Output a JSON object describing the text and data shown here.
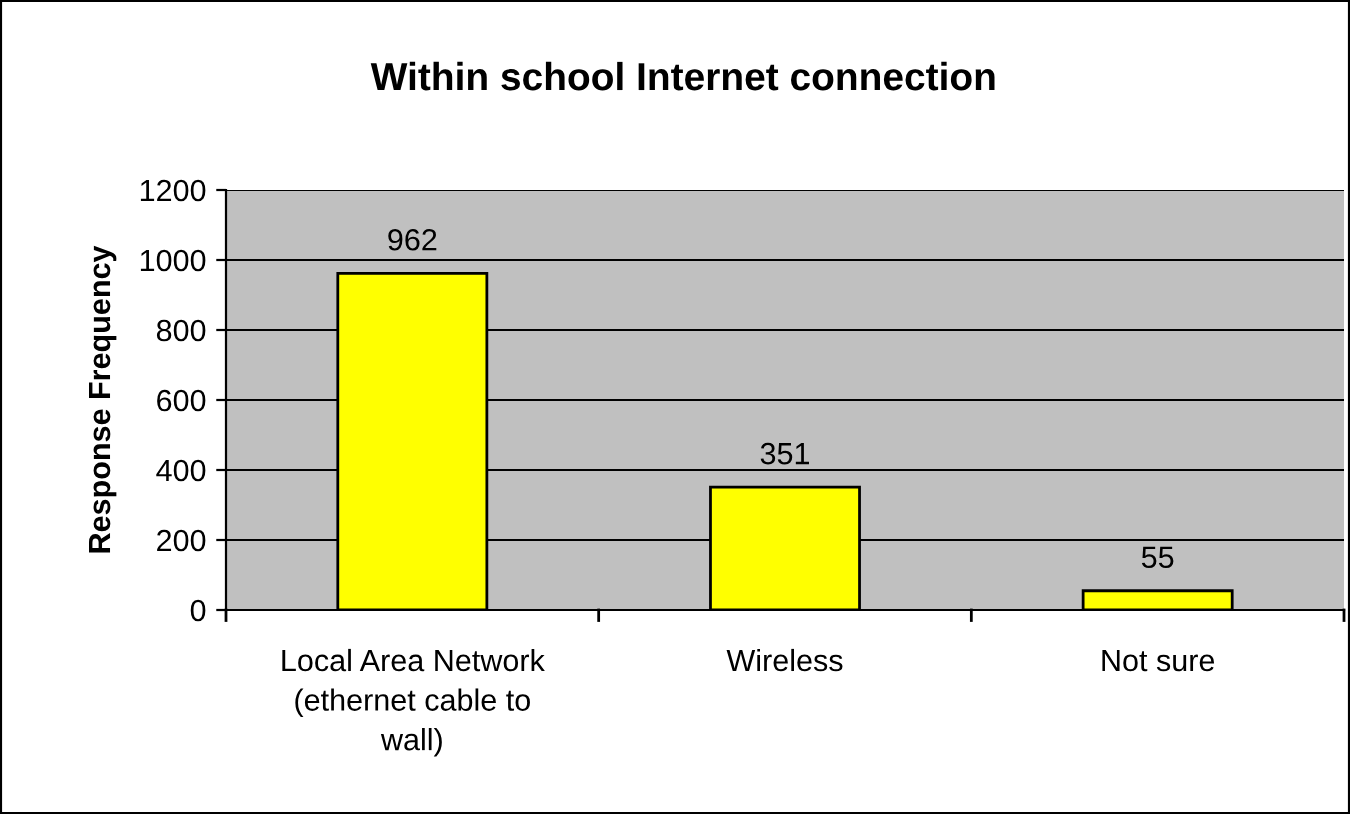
{
  "chart_data": {
    "type": "bar",
    "title": "Within school Internet connection",
    "ylabel": "Response Frequency",
    "categories": [
      "Local Area Network\n(ethernet cable to\nwall)",
      "Wireless",
      "Not sure"
    ],
    "values": [
      962,
      351,
      55
    ],
    "color": "#ffff00",
    "ylim": [
      0,
      1200
    ],
    "yticks": [
      0,
      200,
      400,
      600,
      800,
      1000,
      1200
    ],
    "grid": "y",
    "data_labels": true,
    "legend": false
  }
}
